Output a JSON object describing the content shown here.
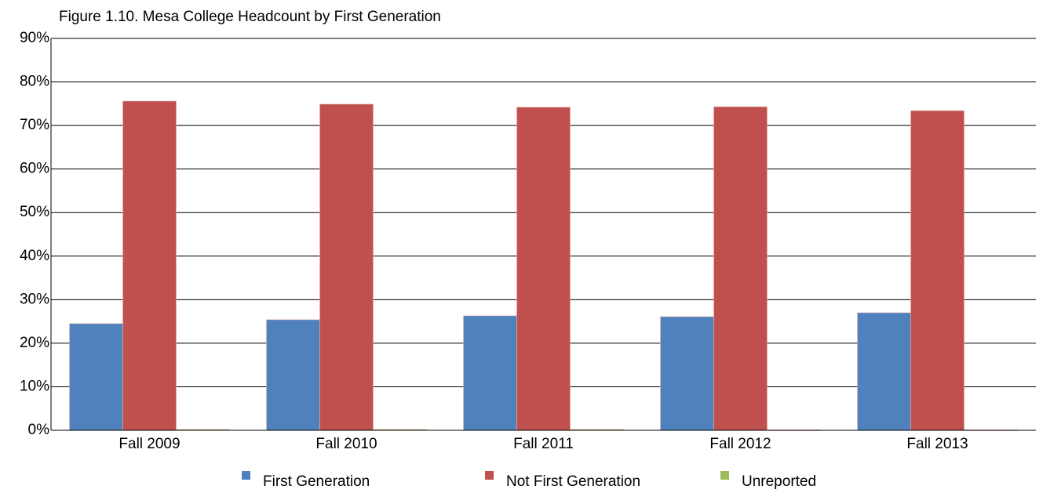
{
  "chart_data": {
    "type": "bar",
    "title": "Figure 1.10. Mesa College Headcount by First Generation",
    "categories": [
      "Fall 2009",
      "Fall 2010",
      "Fall 2011",
      "Fall 2012",
      "Fall 2013"
    ],
    "series": [
      {
        "name": "First Generation",
        "color": "#4f81bd",
        "values": [
          24.5,
          25.4,
          26.3,
          26.1,
          27.0
        ]
      },
      {
        "name": "Not First Generation",
        "color": "#c0504d",
        "values": [
          75.6,
          74.9,
          74.2,
          74.3,
          73.4
        ]
      },
      {
        "name": "Unreported",
        "color": "#9bbb59",
        "values": [
          0.2,
          0.2,
          0.2,
          0.1,
          0.1
        ]
      }
    ],
    "ylim": [
      0,
      90
    ],
    "yticks": [
      {
        "value": 0,
        "label": "0%"
      },
      {
        "value": 10,
        "label": "10%"
      },
      {
        "value": 20,
        "label": "20%"
      },
      {
        "value": 30,
        "label": "30%"
      },
      {
        "value": 40,
        "label": "40%"
      },
      {
        "value": 50,
        "label": "50%"
      },
      {
        "value": 60,
        "label": "60%"
      },
      {
        "value": 70,
        "label": "70%"
      },
      {
        "value": 80,
        "label": "80%"
      },
      {
        "value": 90,
        "label": "90%"
      }
    ],
    "grid": true,
    "legend": "bottom"
  }
}
